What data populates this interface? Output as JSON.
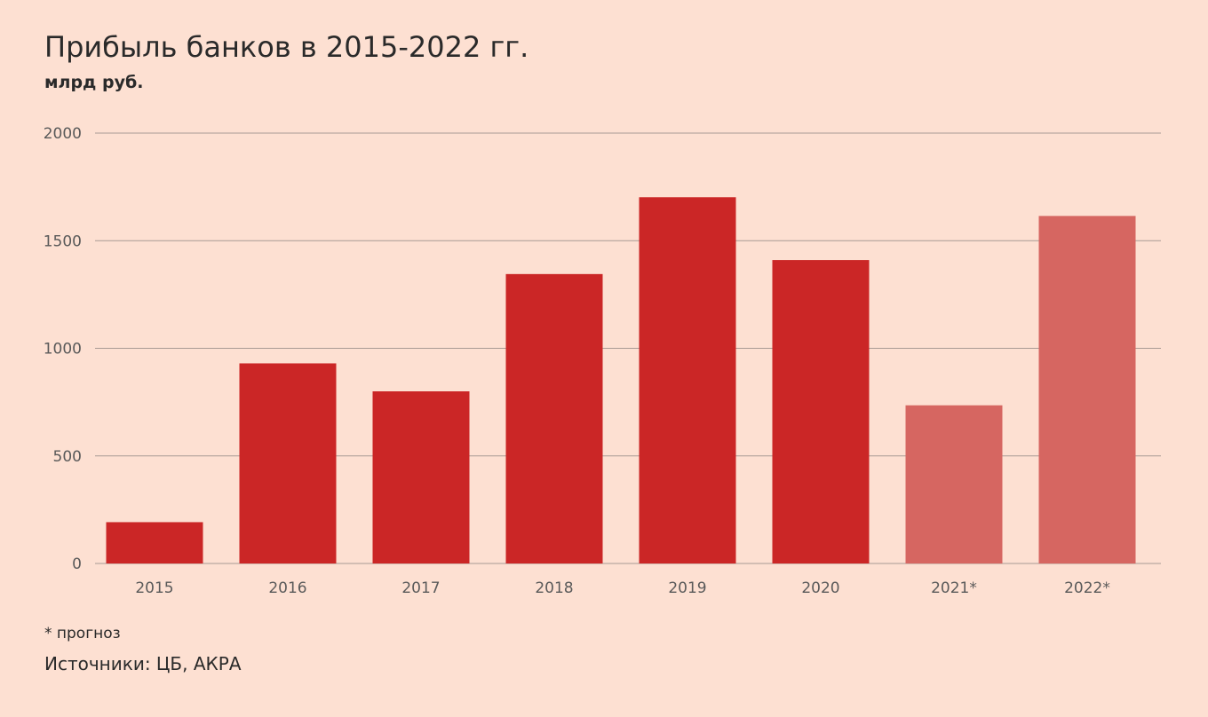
{
  "title": "Прибыль банков в 2015-2022 гг.",
  "subtitle": "млрд руб.",
  "footnote": "* прогноз",
  "source": "Источники: ЦБ, АКРА",
  "colors": {
    "background": "#fde0d2",
    "actual": "#cb2626",
    "forecast": "#d66661",
    "grid": "#a89a94"
  },
  "chart_data": {
    "type": "bar",
    "title": "Прибыль банков в 2015-2022 гг.",
    "ylabel": "млрд руб.",
    "xlabel": "",
    "ylim": [
      0,
      2000
    ],
    "yticks": [
      "0",
      "500",
      "1000",
      "1500",
      "2000"
    ],
    "grid": true,
    "categories": [
      "2015",
      "2016",
      "2017",
      "2018",
      "2019",
      "2020",
      "2021*",
      "2022*"
    ],
    "values": [
      192,
      930,
      800,
      1345,
      1702,
      1410,
      735,
      1615
    ],
    "forecast": [
      false,
      false,
      false,
      false,
      false,
      false,
      true,
      true
    ]
  }
}
